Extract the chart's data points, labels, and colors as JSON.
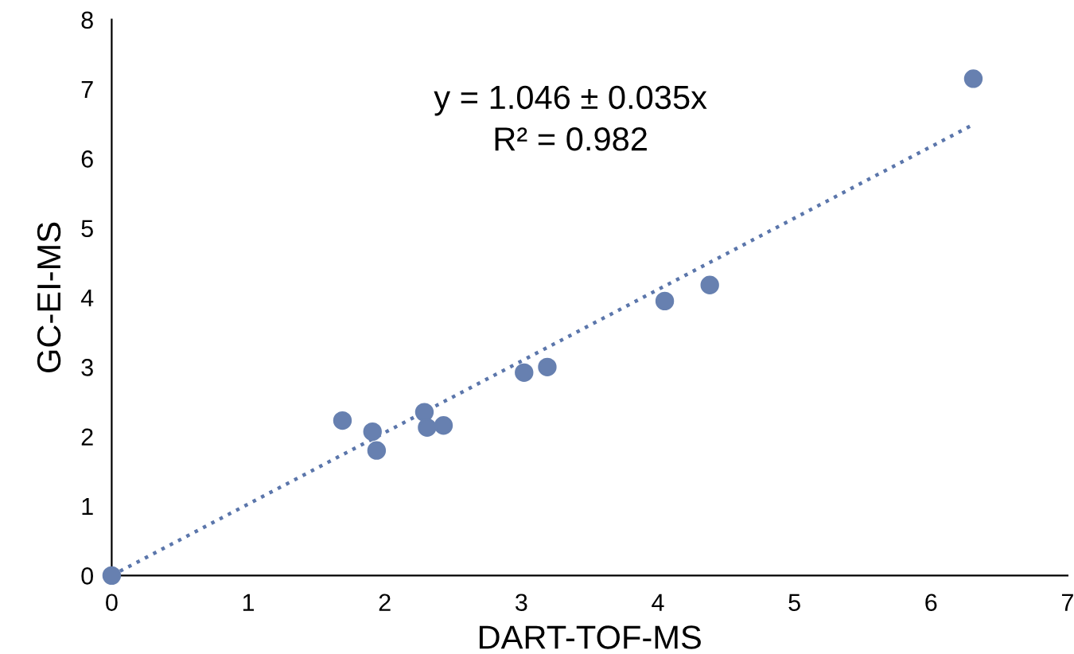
{
  "chart_data": {
    "type": "scatter",
    "xlabel": "DART-TOF-MS",
    "ylabel": "GC-EI-MS",
    "annotations": [
      "y = 1.046 ± 0.035x",
      "R² = 0.982"
    ],
    "series": [
      {
        "color": "#6780b0",
        "marker": "circle",
        "x": [
          0,
          1.69,
          1.91,
          1.94,
          2.29,
          2.31,
          2.43,
          3.02,
          3.19,
          4.05,
          4.38,
          6.31
        ],
        "values": [
          0,
          2.23,
          2.07,
          1.8,
          2.35,
          2.13,
          2.16,
          2.92,
          3.0,
          3.95,
          4.18,
          7.15
        ]
      },
      {
        "type": "line",
        "color": "#5b76ab",
        "line_style": "dotted",
        "x": [
          0,
          6.29
        ],
        "values": [
          0,
          6.47
        ]
      }
    ],
    "xlim": [
      0,
      7
    ],
    "ylim": [
      0,
      8
    ],
    "xticks": [
      0,
      1,
      2,
      3,
      4,
      5,
      6,
      7
    ],
    "yticks": [
      0,
      1,
      2,
      3,
      4,
      5,
      6,
      7,
      8
    ],
    "grid": false,
    "legend": false
  }
}
